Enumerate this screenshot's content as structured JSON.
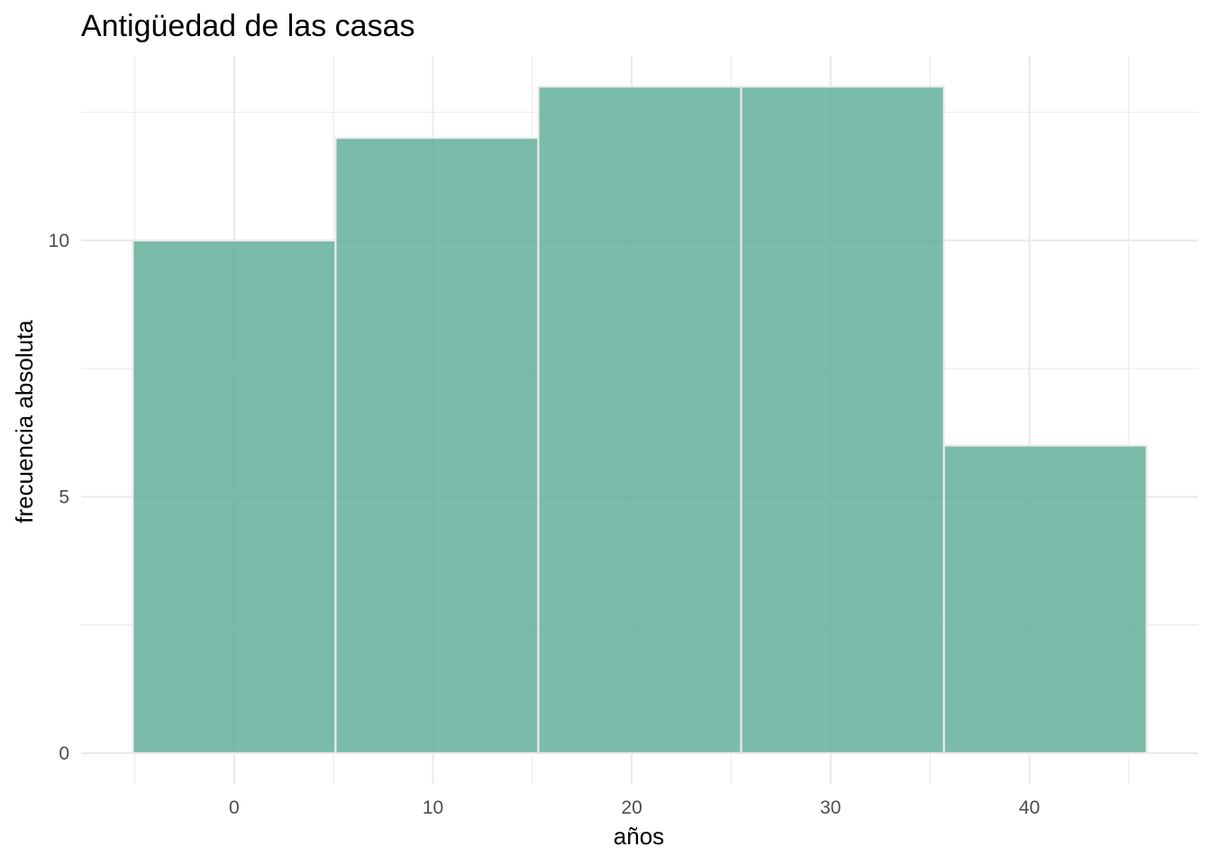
{
  "chart_data": {
    "type": "bar",
    "title": "Antigüedad de las casas",
    "xlabel": "años",
    "ylabel": "frecuencia absoluta",
    "bins": [
      {
        "x_start": -5.1,
        "x_end": 5.1,
        "count": 10
      },
      {
        "x_start": 5.1,
        "x_end": 15.3,
        "count": 12
      },
      {
        "x_start": 15.3,
        "x_end": 25.5,
        "count": 13
      },
      {
        "x_start": 25.5,
        "x_end": 35.7,
        "count": 13
      },
      {
        "x_start": 35.7,
        "x_end": 45.9,
        "count": 6
      }
    ],
    "xlim": [
      -7.7,
      48.5
    ],
    "ylim": [
      -0.6,
      13.6
    ],
    "x_major_ticks": [
      0,
      10,
      20,
      30,
      40
    ],
    "x_minor_ticks": [
      -5,
      5,
      15,
      25,
      35,
      45
    ],
    "y_major_ticks": [
      0,
      5,
      10
    ],
    "y_minor_ticks": [
      2.5,
      7.5,
      12.5
    ],
    "x_tick_labels": [
      "0",
      "10",
      "20",
      "30",
      "40"
    ],
    "y_tick_labels": [
      "0",
      "5",
      "10"
    ],
    "bar_color": "#5aaa95",
    "bar_opacity": 0.8,
    "bar_border_color": "#ebebeb",
    "grid": true,
    "legend": "none"
  }
}
